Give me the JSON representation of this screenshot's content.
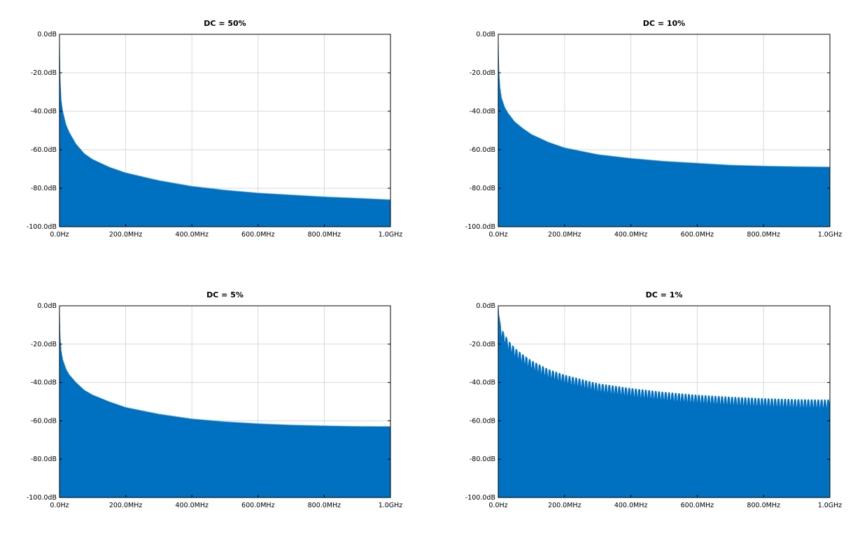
{
  "chart_data": [
    {
      "type": "area",
      "title": "DC = 50%",
      "xlabel": "",
      "ylabel": "",
      "xlim": [
        0,
        1000
      ],
      "ylim": [
        -100,
        0
      ],
      "x_ticks": [
        "0.0Hz",
        "200.0MHz",
        "400.0MHz",
        "600.0MHz",
        "800.0MHz",
        "1.0GHz"
      ],
      "y_ticks": [
        "0.0dB",
        "-20.0dB",
        "-40.0dB",
        "-60.0dB",
        "-80.0dB",
        "-100.0dB"
      ],
      "grid": true,
      "series_color": "#0070c0",
      "envelope": {
        "x_mhz": [
          0,
          2,
          5,
          10,
          20,
          30,
          50,
          75,
          100,
          150,
          200,
          300,
          400,
          500,
          600,
          700,
          800,
          900,
          1000
        ],
        "y_db": [
          0,
          -22,
          -34,
          -40,
          -47,
          -51,
          -57,
          -62,
          -65,
          -69,
          -72,
          -76,
          -79,
          -81,
          -82.5,
          -83.5,
          -84.5,
          -85.2,
          -86
        ]
      }
    },
    {
      "type": "area",
      "title": "DC = 10%",
      "xlabel": "",
      "ylabel": "",
      "xlim": [
        0,
        1000
      ],
      "ylim": [
        -100,
        0
      ],
      "x_ticks": [
        "0.0Hz",
        "200.0MHz",
        "400.0MHz",
        "600.0MHz",
        "800.0MHz",
        "1.0GHz"
      ],
      "y_ticks": [
        "0.0dB",
        "-20.0dB",
        "-40.0dB",
        "-60.0dB",
        "-80.0dB",
        "-100.0dB"
      ],
      "grid": true,
      "series_color": "#0070c0",
      "envelope": {
        "x_mhz": [
          0,
          2,
          5,
          10,
          20,
          30,
          50,
          75,
          100,
          150,
          200,
          300,
          400,
          500,
          600,
          700,
          800,
          900,
          1000
        ],
        "y_db": [
          0,
          -18,
          -27,
          -33,
          -38,
          -41,
          -45.5,
          -49,
          -52,
          -56,
          -59,
          -62.5,
          -64.5,
          -66,
          -67,
          -68,
          -68.5,
          -68.8,
          -69
        ]
      }
    },
    {
      "type": "area",
      "title": "DC = 5%",
      "xlabel": "",
      "ylabel": "",
      "xlim": [
        0,
        1000
      ],
      "ylim": [
        -100,
        0
      ],
      "x_ticks": [
        "0.0Hz",
        "200.0MHz",
        "400.0MHz",
        "600.0MHz",
        "800.0MHz",
        "1.0GHz"
      ],
      "y_ticks": [
        "0.0dB",
        "-20.0dB",
        "-40.0dB",
        "-60.0dB",
        "-80.0dB",
        "-100.0dB"
      ],
      "grid": true,
      "series_color": "#0070c0",
      "envelope": {
        "x_mhz": [
          0,
          2,
          5,
          10,
          20,
          30,
          50,
          75,
          100,
          150,
          200,
          300,
          400,
          500,
          600,
          700,
          800,
          900,
          1000
        ],
        "y_db": [
          0,
          -16,
          -23,
          -28,
          -33,
          -36,
          -40,
          -44,
          -46.5,
          -50,
          -53,
          -56.5,
          -59,
          -60.5,
          -61.5,
          -62.2,
          -62.6,
          -62.9,
          -63
        ]
      }
    },
    {
      "type": "area",
      "title": "DC = 1%",
      "xlabel": "",
      "ylabel": "",
      "xlim": [
        0,
        1000
      ],
      "ylim": [
        -100,
        0
      ],
      "x_ticks": [
        "0.0Hz",
        "200.0MHz",
        "400.0MHz",
        "600.0MHz",
        "800.0MHz",
        "1.0GHz"
      ],
      "y_ticks": [
        "0.0dB",
        "-20.0dB",
        "-40.0dB",
        "-60.0dB",
        "-80.0dB",
        "-100.0dB"
      ],
      "grid": true,
      "series_color": "#0070c0",
      "envelope": {
        "x_mhz": [
          0,
          2,
          5,
          10,
          20,
          30,
          50,
          75,
          100,
          150,
          200,
          300,
          400,
          500,
          600,
          700,
          800,
          900,
          1000
        ],
        "y_db": [
          0,
          -4,
          -8,
          -12,
          -15,
          -18,
          -22,
          -25.5,
          -28.5,
          -33,
          -36,
          -40.5,
          -43,
          -45,
          -46.5,
          -47.5,
          -48.3,
          -48.8,
          -49
        ]
      },
      "ripple": {
        "period_mhz": 10,
        "depth_db": 5
      }
    }
  ]
}
